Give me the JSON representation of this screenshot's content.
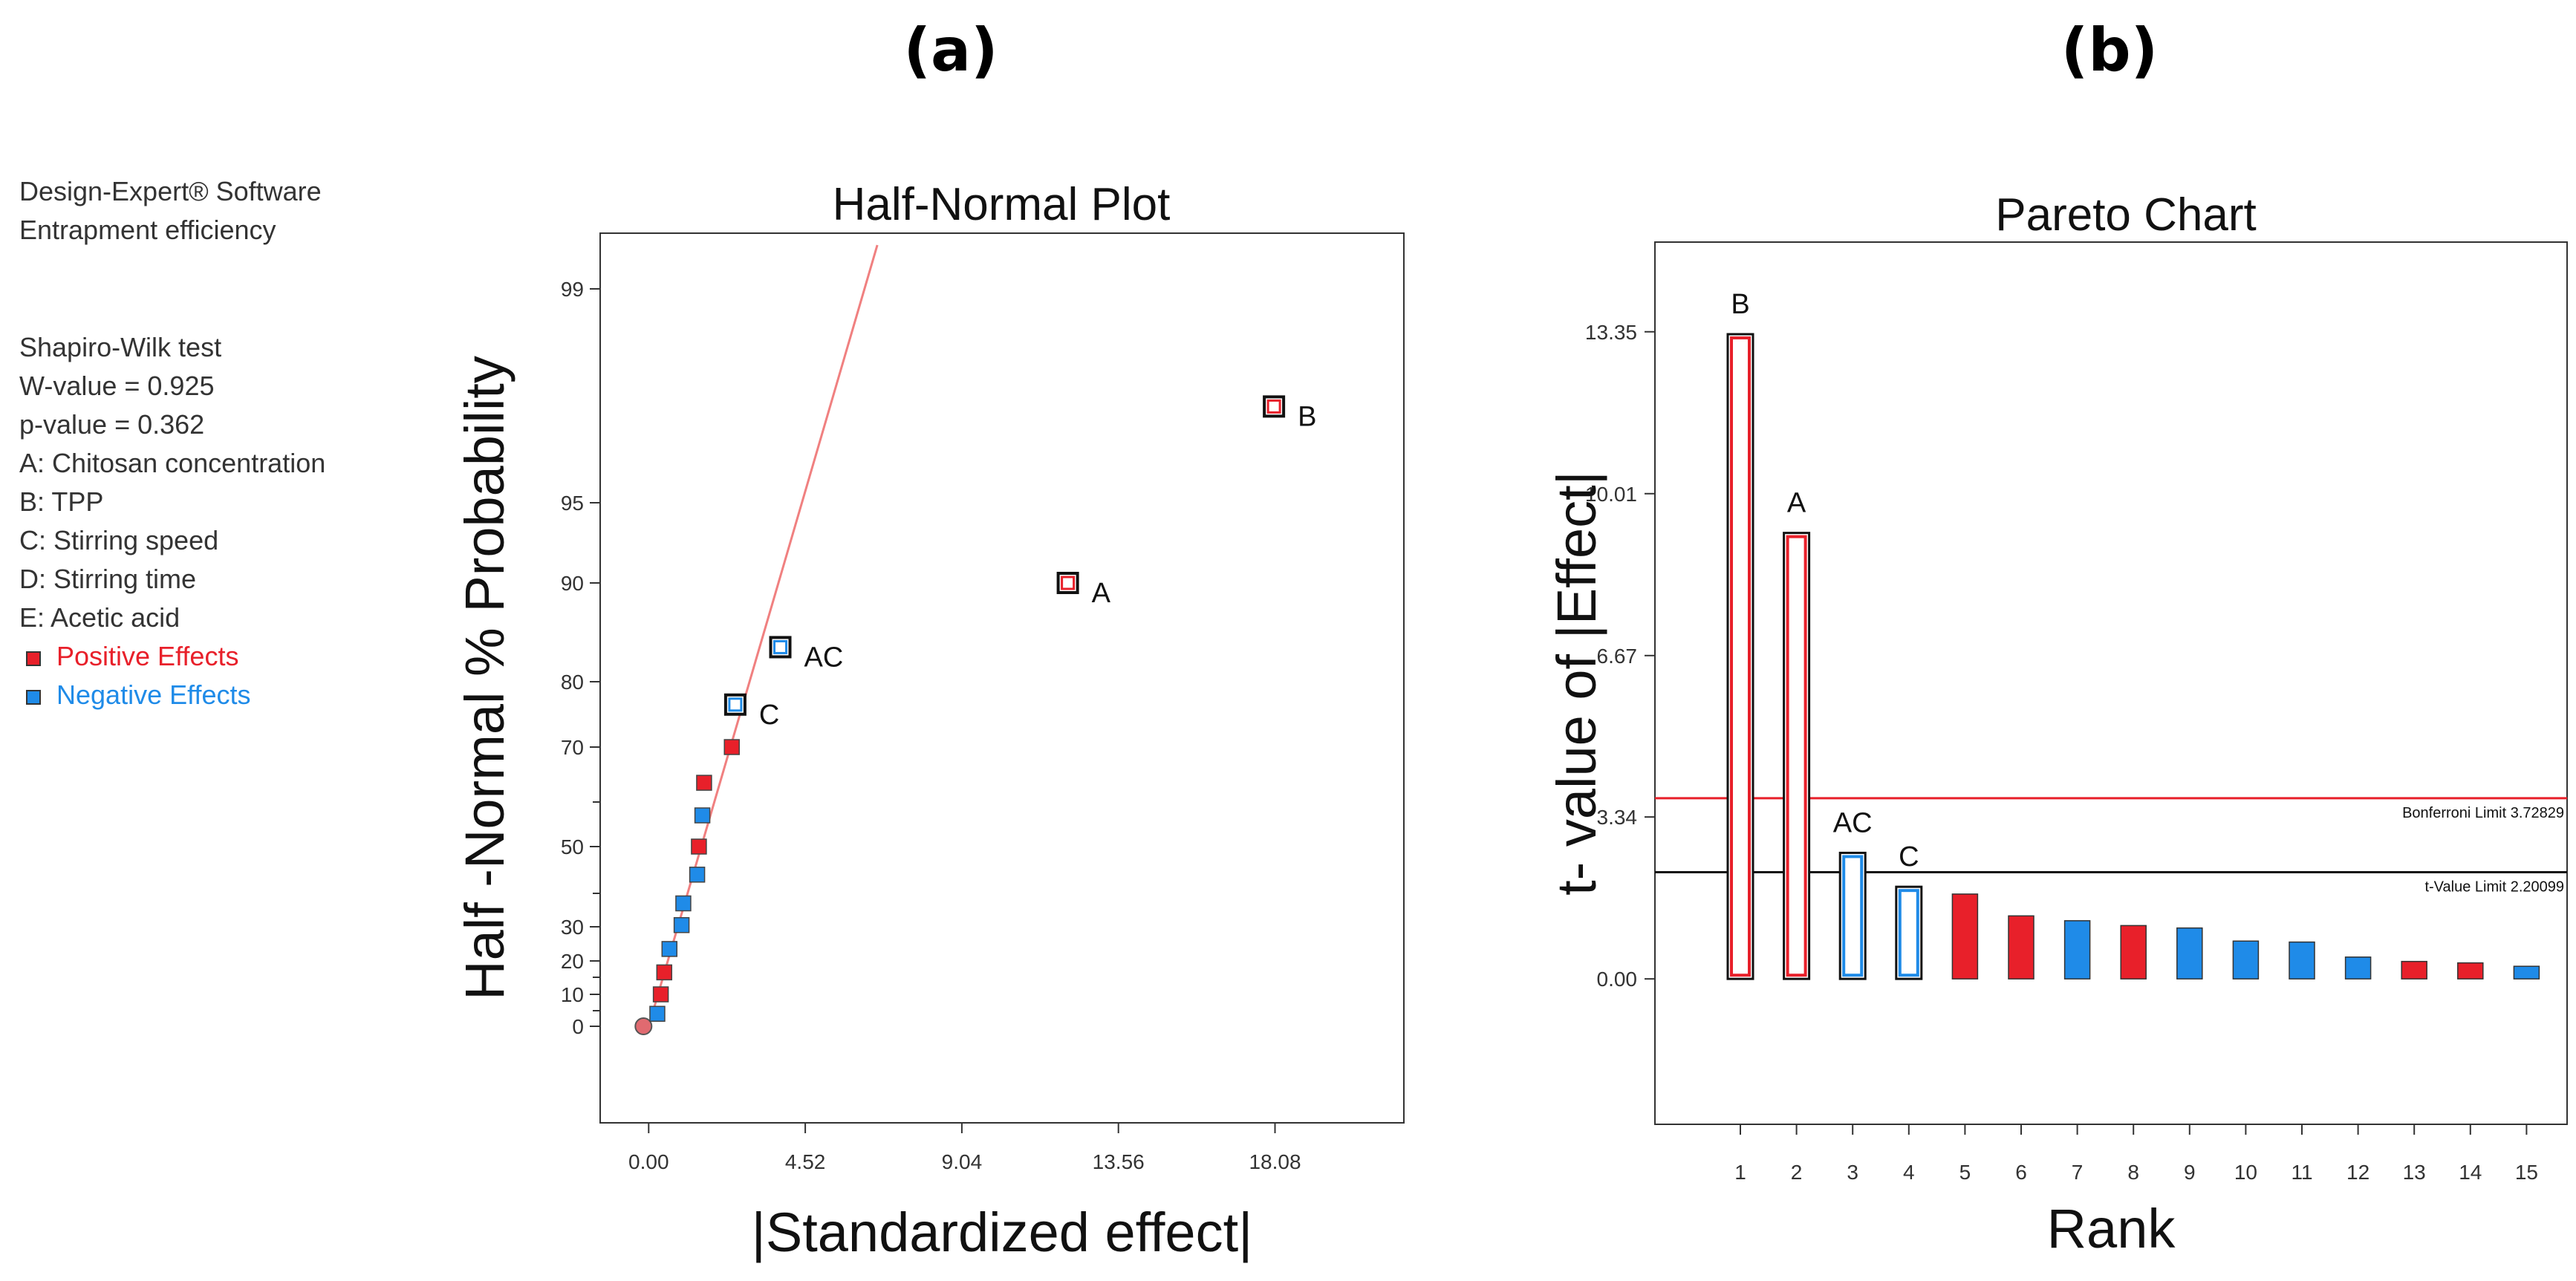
{
  "panel_labels": {
    "a": "(a)",
    "b": "(b)"
  },
  "legend": {
    "software": "Design-Expert® Software",
    "response": "Entrapment efficiency",
    "test_name": "Shapiro-Wilk test",
    "w_value": "W-value = 0.925",
    "p_value": "p-value = 0.362",
    "factors": [
      "A: Chitosan concentration",
      "B: TPP",
      "C: Stirring speed",
      "D: Stirring time",
      "E: Acetic acid"
    ],
    "positive_label": "Positive Effects",
    "negative_label": "Negative Effects"
  },
  "colors": {
    "positive": "#e8202a",
    "negative": "#1f8be8",
    "ref_line": "#f08080",
    "bonferroni": "#e8202a",
    "tvalue": "#111111"
  },
  "chart_data": [
    {
      "type": "scatter",
      "title": "Half-Normal Plot",
      "xlabel": "|Standardized effect|",
      "ylabel": "Half -Normal % Probability",
      "xlim": [
        -1.4,
        21.8
      ],
      "x_ticks": [
        "0.00",
        "4.52",
        "9.04",
        "13.56",
        "18.08"
      ],
      "y_ticks": [
        "99",
        "95",
        "90",
        "80",
        "70",
        "50",
        "30",
        "20",
        "10",
        "0"
      ],
      "y_tick_pcts": [
        99,
        95,
        90,
        80,
        70,
        50,
        30,
        20,
        10,
        0
      ],
      "y_minor_pcts": [
        60,
        40,
        15,
        5
      ],
      "reference_line": [
        [
          0.0,
          0.0
        ],
        [
          6.6,
          99.8
        ]
      ],
      "points": [
        {
          "x": -0.15,
          "pct": 0.0,
          "effect": "error",
          "labeled": false
        },
        {
          "x": 0.25,
          "pct": 4.0,
          "effect": "negative",
          "labeled": false
        },
        {
          "x": 0.35,
          "pct": 10.0,
          "effect": "positive",
          "labeled": false
        },
        {
          "x": 0.45,
          "pct": 16.5,
          "effect": "positive",
          "labeled": false
        },
        {
          "x": 0.6,
          "pct": 23.5,
          "effect": "negative",
          "labeled": false
        },
        {
          "x": 0.95,
          "pct": 30.5,
          "effect": "negative",
          "labeled": false
        },
        {
          "x": 1.0,
          "pct": 37.0,
          "effect": "negative",
          "labeled": false
        },
        {
          "x": 1.4,
          "pct": 44.0,
          "effect": "negative",
          "labeled": false
        },
        {
          "x": 1.45,
          "pct": 50.0,
          "effect": "positive",
          "labeled": false
        },
        {
          "x": 1.55,
          "pct": 57.0,
          "effect": "negative",
          "labeled": false
        },
        {
          "x": 1.6,
          "pct": 63.5,
          "effect": "positive",
          "labeled": false
        },
        {
          "x": 2.4,
          "pct": 70.0,
          "effect": "positive",
          "labeled": false
        },
        {
          "x": 2.5,
          "pct": 76.5,
          "effect": "negative",
          "labeled": true,
          "label": "C"
        },
        {
          "x": 3.8,
          "pct": 83.5,
          "effect": "negative",
          "labeled": true,
          "label": "AC"
        },
        {
          "x": 12.1,
          "pct": 90.0,
          "effect": "positive",
          "labeled": true,
          "label": "A"
        },
        {
          "x": 18.05,
          "pct": 96.8,
          "effect": "positive",
          "labeled": true,
          "label": "B"
        }
      ]
    },
    {
      "type": "bar",
      "title": "Pareto Chart",
      "xlabel": "Rank",
      "ylabel": "t- value of |Effect|",
      "ylim": [
        -3.0,
        15.2
      ],
      "y_ticks": [
        "13.35",
        "10.01",
        "6.67",
        "3.34",
        "0.00"
      ],
      "y_tick_values": [
        13.35,
        10.01,
        6.67,
        3.34,
        0.0
      ],
      "categories": [
        "1",
        "2",
        "3",
        "4",
        "5",
        "6",
        "7",
        "8",
        "9",
        "10",
        "11",
        "12",
        "13",
        "14",
        "15"
      ],
      "values": [
        13.3,
        9.2,
        2.6,
        1.9,
        1.75,
        1.3,
        1.2,
        1.1,
        1.05,
        0.78,
        0.76,
        0.45,
        0.36,
        0.33,
        0.26
      ],
      "effects": [
        "positive",
        "positive",
        "negative",
        "negative",
        "positive",
        "positive",
        "negative",
        "positive",
        "negative",
        "negative",
        "negative",
        "negative",
        "positive",
        "positive",
        "negative"
      ],
      "bar_labels": [
        "B",
        "A",
        "AC",
        "C",
        "",
        "",
        "",
        "",
        "",
        "",
        "",
        "",
        "",
        "",
        ""
      ],
      "significant": [
        true,
        true,
        true,
        true,
        false,
        false,
        false,
        false,
        false,
        false,
        false,
        false,
        false,
        false,
        false
      ],
      "bonferroni_limit": 3.72829,
      "bonferroni_label": "Bonferroni Limit 3.72829",
      "t_value_limit": 2.20099,
      "t_value_label": "t-Value Limit 2.20099"
    }
  ]
}
